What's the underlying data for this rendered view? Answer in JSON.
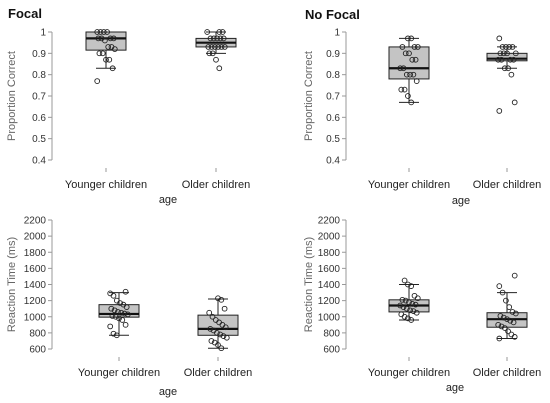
{
  "chart_data": [
    {
      "type": "box",
      "panel_label": "Focal",
      "ylabel": "Proportion Correct",
      "xlabel": "age",
      "categories": [
        "Younger children",
        "Older children"
      ],
      "yticks": [
        0.4,
        0.5,
        0.6,
        0.7,
        0.8,
        0.9,
        1
      ],
      "ylim": [
        0.4,
        1
      ],
      "boxes": [
        {
          "min": 0.83,
          "q1": 0.915,
          "median": 0.97,
          "q3": 1.0,
          "max": 1.0,
          "points": [
            1.0,
            1.0,
            1.0,
            1.0,
            0.97,
            0.97,
            0.97,
            0.97,
            0.96,
            0.93,
            0.93,
            0.92,
            0.9,
            0.9,
            0.87,
            0.87,
            0.83,
            0.77
          ]
        },
        {
          "min": 0.9,
          "q1": 0.93,
          "median": 0.95,
          "q3": 0.97,
          "max": 1.0,
          "points": [
            1.0,
            1.0,
            1.0,
            0.97,
            0.97,
            0.97,
            0.97,
            0.97,
            0.93,
            0.93,
            0.93,
            0.93,
            0.93,
            0.93,
            0.9,
            0.9,
            0.87,
            0.83
          ]
        }
      ]
    },
    {
      "type": "box",
      "panel_label": "No Focal",
      "ylabel": "Proportion Correct",
      "xlabel": "age",
      "categories": [
        "Younger children",
        "Older children"
      ],
      "yticks": [
        0.4,
        0.5,
        0.6,
        0.7,
        0.8,
        0.9,
        1
      ],
      "ylim": [
        0.4,
        1
      ],
      "boxes": [
        {
          "min": 0.67,
          "q1": 0.78,
          "median": 0.83,
          "q3": 0.93,
          "max": 0.97,
          "points": [
            0.97,
            0.97,
            0.93,
            0.93,
            0.93,
            0.9,
            0.9,
            0.87,
            0.87,
            0.83,
            0.83,
            0.8,
            0.8,
            0.8,
            0.77,
            0.73,
            0.73,
            0.7,
            0.67
          ]
        },
        {
          "min": 0.83,
          "q1": 0.865,
          "median": 0.875,
          "q3": 0.9,
          "max": 0.93,
          "points": [
            0.97,
            0.93,
            0.93,
            0.93,
            0.93,
            0.9,
            0.9,
            0.9,
            0.9,
            0.87,
            0.87,
            0.87,
            0.87,
            0.83,
            0.83,
            0.8,
            0.67,
            0.63
          ]
        }
      ]
    },
    {
      "type": "box",
      "panel_label": "",
      "ylabel": "Reaction Time (ms)",
      "xlabel": "age",
      "categories": [
        "Younger children",
        "Older children"
      ],
      "yticks": [
        600,
        800,
        1000,
        1200,
        1400,
        1600,
        1800,
        2000,
        2200
      ],
      "ylim": [
        600,
        2200
      ],
      "boxes": [
        {
          "min": 770,
          "q1": 995,
          "median": 1035,
          "q3": 1150,
          "max": 1300,
          "points": [
            1310,
            1290,
            1260,
            1200,
            1170,
            1150,
            1120,
            1100,
            1080,
            1060,
            1050,
            1040,
            1030,
            1010,
            1000,
            980,
            960,
            900,
            880,
            790,
            770
          ]
        },
        {
          "min": 610,
          "q1": 770,
          "median": 850,
          "q3": 1020,
          "max": 1220,
          "points": [
            1230,
            1210,
            1100,
            1050,
            1000,
            960,
            930,
            900,
            870,
            850,
            830,
            800,
            780,
            760,
            740,
            700,
            680,
            650,
            610
          ]
        }
      ]
    },
    {
      "type": "box",
      "panel_label": "",
      "ylabel": "Reaction Time (ms)",
      "xlabel": "age",
      "categories": [
        "Younger children",
        "Older children"
      ],
      "yticks": [
        600,
        800,
        1000,
        1200,
        1400,
        1600,
        1800,
        2000,
        2200
      ],
      "ylim": [
        600,
        2200
      ],
      "boxes": [
        {
          "min": 960,
          "q1": 1060,
          "median": 1140,
          "q3": 1210,
          "max": 1400,
          "points": [
            1450,
            1400,
            1380,
            1260,
            1230,
            1210,
            1200,
            1180,
            1160,
            1150,
            1140,
            1120,
            1100,
            1080,
            1070,
            1050,
            1030,
            1000,
            980,
            960
          ]
        },
        {
          "min": 730,
          "q1": 870,
          "median": 970,
          "q3": 1050,
          "max": 1300,
          "points": [
            1510,
            1380,
            1300,
            1200,
            1120,
            1060,
            1040,
            1010,
            990,
            970,
            950,
            930,
            900,
            880,
            860,
            820,
            780,
            750,
            730
          ]
        }
      ]
    }
  ]
}
